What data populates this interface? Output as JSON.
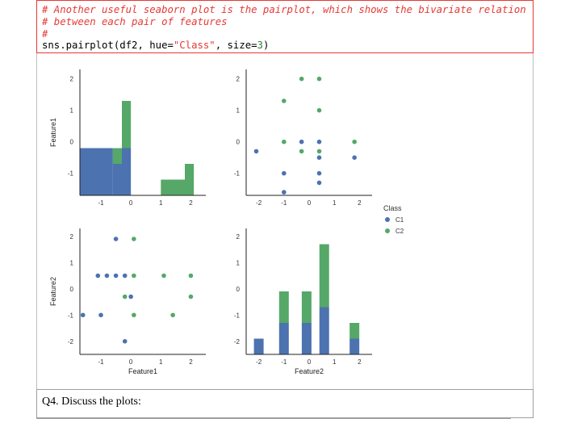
{
  "code_cell": {
    "comment_line_1": "# Another useful seaborn plot is the pairplot, which shows the bivariate relation",
    "comment_line_2": "# between each pair of features",
    "comment_line_3": "#",
    "code_prefix": "sns.pairplot(df2, hue=",
    "code_string": "\"Class\"",
    "code_mid": ", size=",
    "code_number": "3",
    "code_suffix": ")"
  },
  "question": {
    "text": "Q4. Discuss the plots:"
  },
  "chart_data": {
    "type": "pairplot",
    "variables": [
      "Feature1",
      "Feature2"
    ],
    "hue": "Class",
    "legend": {
      "title": "Class",
      "entries": [
        "C1",
        "C2"
      ],
      "placement": "right"
    },
    "colors": {
      "C1": "#4c72b0",
      "C2": "#55a868"
    },
    "feature1": {
      "xlabel": "Feature1",
      "ylabel": "Feature1",
      "xlim": [
        -1.7,
        2.5
      ],
      "ylim": [
        -1.7,
        2.3
      ],
      "xticks": [
        "-1",
        "0",
        "1",
        "2"
      ],
      "yticks": [
        "-1",
        "0",
        "1",
        "2"
      ]
    },
    "feature2": {
      "xlabel": "Feature2",
      "ylabel": "Feature2",
      "xlim": [
        -2.5,
        2.5
      ],
      "ylim": [
        -2.5,
        2.3
      ],
      "xticks": [
        "-2",
        "-1",
        "0",
        "1",
        "2"
      ],
      "yticks": [
        "-2",
        "-1",
        "0",
        "1",
        "2"
      ]
    },
    "hist_feature1": {
      "bins": [
        {
          "range": [
            -1.7,
            -0.6
          ],
          "C1": 3,
          "C2": 0
        },
        {
          "range": [
            -0.6,
            -0.3
          ],
          "C1": 2,
          "C2": 1
        },
        {
          "range": [
            -0.3,
            0.0
          ],
          "C1": 3,
          "C2": 3
        },
        {
          "range": [
            1.0,
            1.8
          ],
          "C1": 0,
          "C2": 1
        },
        {
          "range": [
            1.8,
            2.1
          ],
          "C1": 0,
          "C2": 2
        }
      ],
      "ymax": 8
    },
    "hist_feature2": {
      "bins": [
        {
          "center": -2.0,
          "C1": 1,
          "C2": 0
        },
        {
          "center": -1.0,
          "C1": 2,
          "C2": 2
        },
        {
          "center": -0.1,
          "C1": 2,
          "C2": 2
        },
        {
          "center": 0.6,
          "C1": 3,
          "C2": 4
        },
        {
          "center": 1.8,
          "C1": 1,
          "C2": 1
        }
      ],
      "ymax": 8
    },
    "scatter_f2_vs_f1": {
      "xvar": "Feature2",
      "yvar": "Feature1",
      "points": [
        {
          "x": -2.1,
          "y": -0.3,
          "class": "C1"
        },
        {
          "x": -1.0,
          "y": -1.0,
          "class": "C1"
        },
        {
          "x": -1.0,
          "y": -1.6,
          "class": "C1"
        },
        {
          "x": -0.3,
          "y": 0.0,
          "class": "C1"
        },
        {
          "x": 0.4,
          "y": -0.5,
          "class": "C1"
        },
        {
          "x": 0.4,
          "y": -1.0,
          "class": "C1"
        },
        {
          "x": 0.4,
          "y": -1.3,
          "class": "C1"
        },
        {
          "x": 0.4,
          "y": 0.0,
          "class": "C1"
        },
        {
          "x": 1.8,
          "y": -0.5,
          "class": "C1"
        },
        {
          "x": -1.0,
          "y": 0.0,
          "class": "C2"
        },
        {
          "x": -1.0,
          "y": 1.3,
          "class": "C2"
        },
        {
          "x": -0.3,
          "y": 2.0,
          "class": "C2"
        },
        {
          "x": -0.3,
          "y": -0.3,
          "class": "C2"
        },
        {
          "x": 0.4,
          "y": 2.0,
          "class": "C2"
        },
        {
          "x": 0.4,
          "y": 1.0,
          "class": "C2"
        },
        {
          "x": 0.4,
          "y": -0.3,
          "class": "C2"
        },
        {
          "x": 1.8,
          "y": 0.0,
          "class": "C2"
        }
      ]
    },
    "scatter_f1_vs_f2": {
      "xvar": "Feature1",
      "yvar": "Feature2",
      "points": [
        {
          "x": -0.5,
          "y": 1.9,
          "class": "C1"
        },
        {
          "x": -1.1,
          "y": 0.5,
          "class": "C1"
        },
        {
          "x": -0.8,
          "y": 0.5,
          "class": "C1"
        },
        {
          "x": -0.5,
          "y": 0.5,
          "class": "C1"
        },
        {
          "x": -0.2,
          "y": 0.5,
          "class": "C1"
        },
        {
          "x": 0.0,
          "y": -0.3,
          "class": "C1"
        },
        {
          "x": -1.6,
          "y": -1.0,
          "class": "C1"
        },
        {
          "x": -1.0,
          "y": -1.0,
          "class": "C1"
        },
        {
          "x": -0.2,
          "y": -2.0,
          "class": "C1"
        },
        {
          "x": 0.1,
          "y": 1.9,
          "class": "C2"
        },
        {
          "x": 0.1,
          "y": 0.5,
          "class": "C2"
        },
        {
          "x": 1.1,
          "y": 0.5,
          "class": "C2"
        },
        {
          "x": 2.0,
          "y": 0.5,
          "class": "C2"
        },
        {
          "x": -0.2,
          "y": -0.3,
          "class": "C2"
        },
        {
          "x": 2.0,
          "y": -0.3,
          "class": "C2"
        },
        {
          "x": 0.1,
          "y": -1.0,
          "class": "C2"
        },
        {
          "x": 1.4,
          "y": -1.0,
          "class": "C2"
        }
      ]
    }
  }
}
